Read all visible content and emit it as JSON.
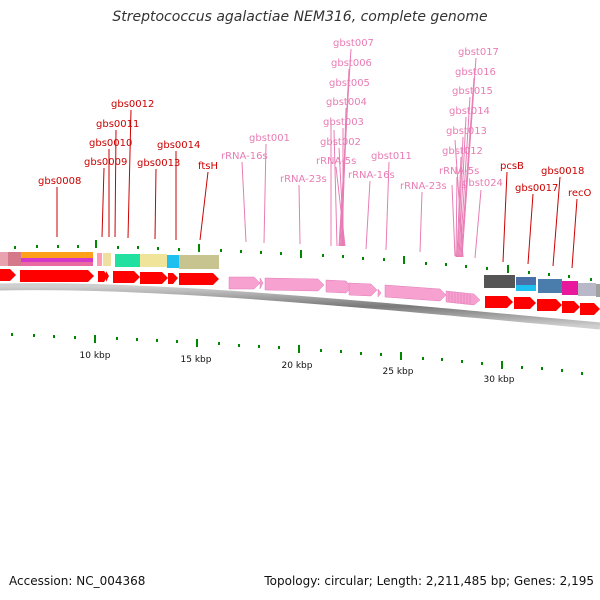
{
  "title": "Streptococcus agalactiae NEM316, complete genome",
  "footer": {
    "accession": "Accession: NC_004368",
    "stats": "Topology: circular; Length: 2,211,485 bp; Genes: 2,195"
  },
  "scale_labels": [
    "10 kbp",
    "15 kbp",
    "20 kbp",
    "25 kbp",
    "30 kbp"
  ],
  "colors": {
    "gene_label": "#cc0000",
    "rna_label": "#e87cb4",
    "cds_arrow": "#ff0000",
    "rna_arrow": "#f7a1d0",
    "tick": "#008800"
  },
  "gene_labels": [
    {
      "text": "gbs0008",
      "kind": "gene"
    },
    {
      "text": "gbs0009",
      "kind": "gene"
    },
    {
      "text": "gbs0010",
      "kind": "gene"
    },
    {
      "text": "gbs0011",
      "kind": "gene"
    },
    {
      "text": "gbs0012",
      "kind": "gene"
    },
    {
      "text": "gbs0013",
      "kind": "gene"
    },
    {
      "text": "gbs0014",
      "kind": "gene"
    },
    {
      "text": "ftsH",
      "kind": "gene"
    },
    {
      "text": "rRNA-16s",
      "kind": "rna"
    },
    {
      "text": "gbst001",
      "kind": "rna"
    },
    {
      "text": "rRNA-23s",
      "kind": "rna"
    },
    {
      "text": "gbst007",
      "kind": "rna"
    },
    {
      "text": "gbst006",
      "kind": "rna"
    },
    {
      "text": "gbst005",
      "kind": "rna"
    },
    {
      "text": "gbst004",
      "kind": "rna"
    },
    {
      "text": "gbst003",
      "kind": "rna"
    },
    {
      "text": "gbst002",
      "kind": "rna"
    },
    {
      "text": "rRNA-5s",
      "kind": "rna"
    },
    {
      "text": "rRNA-16s",
      "kind": "rna"
    },
    {
      "text": "gbst011",
      "kind": "rna"
    },
    {
      "text": "rRNA-23s",
      "kind": "rna"
    },
    {
      "text": "gbst017",
      "kind": "rna"
    },
    {
      "text": "gbst016",
      "kind": "rna"
    },
    {
      "text": "gbst015",
      "kind": "rna"
    },
    {
      "text": "gbst014",
      "kind": "rna"
    },
    {
      "text": "gbst013",
      "kind": "rna"
    },
    {
      "text": "gbst012",
      "kind": "rna"
    },
    {
      "text": "rRNA-5s",
      "kind": "rna"
    },
    {
      "text": "gbst024",
      "kind": "rna"
    },
    {
      "text": "pcsB",
      "kind": "gene"
    },
    {
      "text": "gbs0017",
      "kind": "gene"
    },
    {
      "text": "gbs0018",
      "kind": "gene"
    },
    {
      "text": "recO",
      "kind": "gene"
    }
  ]
}
